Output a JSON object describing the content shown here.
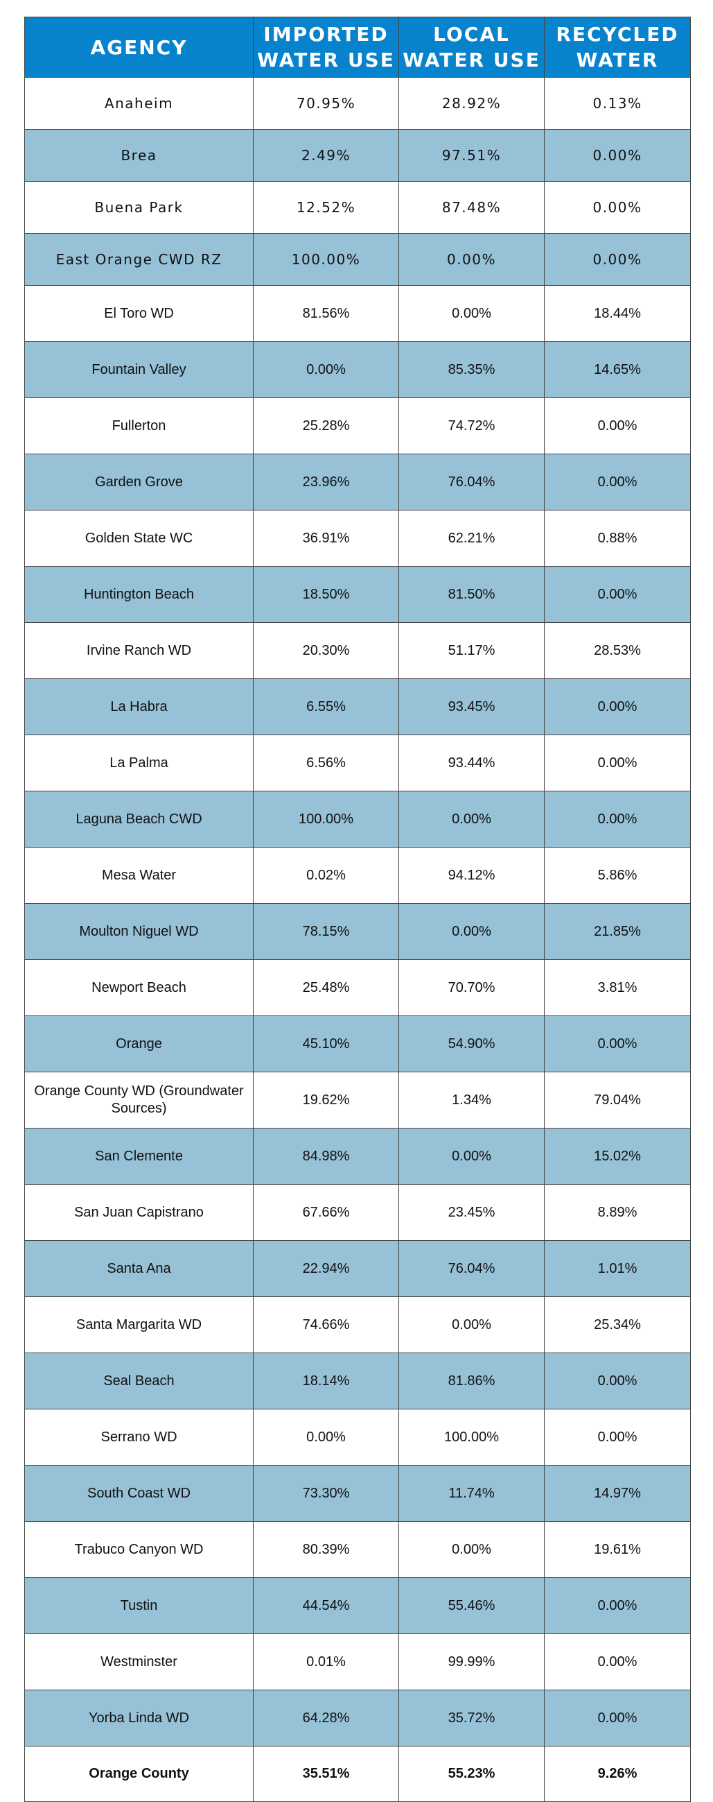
{
  "table": {
    "headers": {
      "agency": "AGENCY",
      "imported": "IMPORTED\nWATER USE",
      "local": "LOCAL\nWATER USE",
      "recycled": "RECYCLED\nWATER"
    },
    "rows": [
      {
        "agency": "Anaheim",
        "imported": "70.95%",
        "local": "28.92%",
        "recycled": "0.13%"
      },
      {
        "agency": "Brea",
        "imported": "2.49%",
        "local": "97.51%",
        "recycled": "0.00%"
      },
      {
        "agency": "Buena Park",
        "imported": "12.52%",
        "local": "87.48%",
        "recycled": "0.00%"
      },
      {
        "agency": "East Orange CWD RZ",
        "imported": "100.00%",
        "local": "0.00%",
        "recycled": "0.00%"
      },
      {
        "agency": "El Toro WD",
        "imported": "81.56%",
        "local": "0.00%",
        "recycled": "18.44%"
      },
      {
        "agency": "Fountain Valley",
        "imported": "0.00%",
        "local": "85.35%",
        "recycled": "14.65%"
      },
      {
        "agency": "Fullerton",
        "imported": "25.28%",
        "local": "74.72%",
        "recycled": "0.00%"
      },
      {
        "agency": "Garden Grove",
        "imported": "23.96%",
        "local": "76.04%",
        "recycled": "0.00%"
      },
      {
        "agency": "Golden State WC",
        "imported": "36.91%",
        "local": "62.21%",
        "recycled": "0.88%"
      },
      {
        "agency": "Huntington Beach",
        "imported": "18.50%",
        "local": "81.50%",
        "recycled": "0.00%"
      },
      {
        "agency": "Irvine Ranch WD",
        "imported": "20.30%",
        "local": "51.17%",
        "recycled": "28.53%"
      },
      {
        "agency": "La Habra",
        "imported": "6.55%",
        "local": "93.45%",
        "recycled": "0.00%"
      },
      {
        "agency": "La Palma",
        "imported": "6.56%",
        "local": "93.44%",
        "recycled": "0.00%"
      },
      {
        "agency": "Laguna Beach CWD",
        "imported": "100.00%",
        "local": "0.00%",
        "recycled": "0.00%"
      },
      {
        "agency": "Mesa Water",
        "imported": "0.02%",
        "local": "94.12%",
        "recycled": "5.86%"
      },
      {
        "agency": "Moulton Niguel WD",
        "imported": "78.15%",
        "local": "0.00%",
        "recycled": "21.85%"
      },
      {
        "agency": "Newport Beach",
        "imported": "25.48%",
        "local": "70.70%",
        "recycled": "3.81%"
      },
      {
        "agency": "Orange",
        "imported": "45.10%",
        "local": "54.90%",
        "recycled": "0.00%"
      },
      {
        "agency": "Orange County WD (Groundwater Sources)",
        "imported": "19.62%",
        "local": "1.34%",
        "recycled": "79.04%"
      },
      {
        "agency": "San Clemente",
        "imported": "84.98%",
        "local": "0.00%",
        "recycled": "15.02%"
      },
      {
        "agency": "San Juan Capistrano",
        "imported": "67.66%",
        "local": "23.45%",
        "recycled": "8.89%"
      },
      {
        "agency": "Santa Ana",
        "imported": "22.94%",
        "local": "76.04%",
        "recycled": "1.01%"
      },
      {
        "agency": "Santa Margarita WD",
        "imported": "74.66%",
        "local": "0.00%",
        "recycled": "25.34%"
      },
      {
        "agency": "Seal Beach",
        "imported": "18.14%",
        "local": "81.86%",
        "recycled": "0.00%"
      },
      {
        "agency": "Serrano WD",
        "imported": "0.00%",
        "local": "100.00%",
        "recycled": "0.00%"
      },
      {
        "agency": "South Coast WD",
        "imported": "73.30%",
        "local": "11.74%",
        "recycled": "14.97%"
      },
      {
        "agency": "Trabuco Canyon WD",
        "imported": "80.39%",
        "local": "0.00%",
        "recycled": "19.61%"
      },
      {
        "agency": "Tustin",
        "imported": "44.54%",
        "local": "55.46%",
        "recycled": "0.00%"
      },
      {
        "agency": "Westminster",
        "imported": "0.01%",
        "local": "99.99%",
        "recycled": "0.00%"
      },
      {
        "agency": "Yorba Linda WD",
        "imported": "64.28%",
        "local": "35.72%",
        "recycled": "0.00%"
      }
    ],
    "total": {
      "agency": "Orange County",
      "imported": "35.51%",
      "local": "55.23%",
      "recycled": "9.26%"
    }
  },
  "colors": {
    "header_background": "#0782cd",
    "header_text": "#ffffff",
    "alternate_row": "#96c1d7",
    "row": "#ffffff",
    "border": "#444444"
  }
}
